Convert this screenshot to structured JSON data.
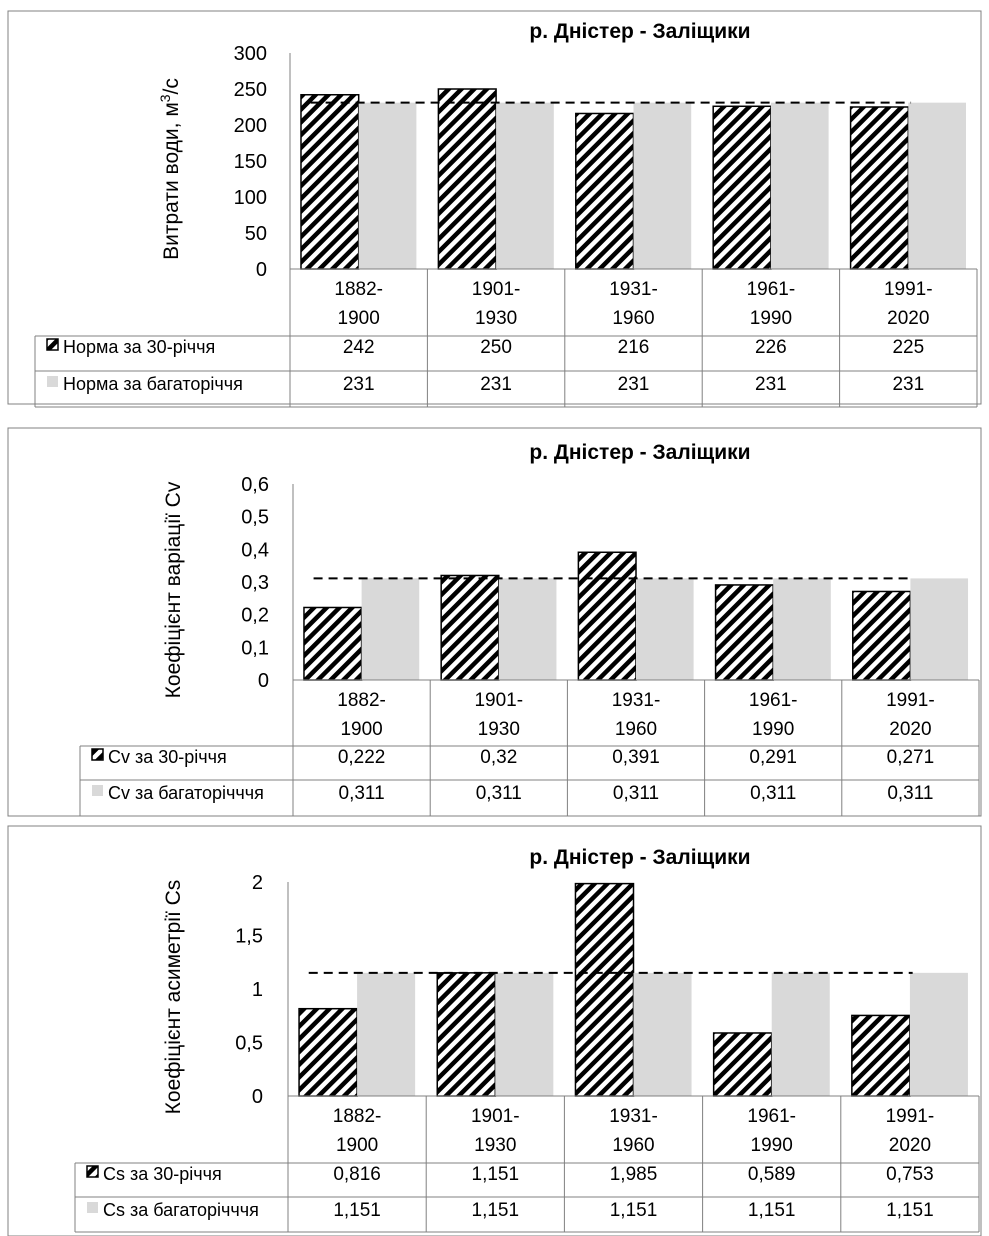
{
  "chart_data": [
    {
      "type": "bar",
      "title": "р. Дністер - Заліщики",
      "ylabel": "Витрати води, м³/с",
      "ylabel_base": "Витрати води, м",
      "ylabel_sup": "3",
      "ylabel_tail": "/с",
      "ylim": [
        0,
        300
      ],
      "yticks": [
        "0",
        "50",
        "100",
        "150",
        "200",
        "250",
        "300"
      ],
      "categories": [
        "1882-1900",
        "1901-1930",
        "1931-1960",
        "1961-1990",
        "1991-2020"
      ],
      "category_lines": [
        [
          "1882-",
          "1900"
        ],
        [
          "1901-",
          "1930"
        ],
        [
          "1931-",
          "1960"
        ],
        [
          "1961-",
          "1990"
        ],
        [
          "1991-",
          "2020"
        ]
      ],
      "series": [
        {
          "name": "Норма за 30-річчя",
          "values": [
            242,
            250,
            216,
            226,
            225
          ],
          "display": [
            "242",
            "250",
            "216",
            "226",
            "225"
          ],
          "style": "hatched"
        },
        {
          "name": "Норма за багаторіччя",
          "values": [
            231,
            231,
            231,
            231,
            231
          ],
          "display": [
            "231",
            "231",
            "231",
            "231",
            "231"
          ],
          "style": "solid",
          "color": "#d9d9d9"
        }
      ],
      "reference_line": 231,
      "legend": "data-table",
      "grid": false
    },
    {
      "type": "bar",
      "title": "р. Дністер - Заліщики",
      "ylabel": "Коефіцієнт варіації Cv",
      "ylim": [
        0,
        0.6
      ],
      "yticks": [
        "0",
        "0,1",
        "0,2",
        "0,3",
        "0,4",
        "0,5",
        "0,6"
      ],
      "categories": [
        "1882-1900",
        "1901-1930",
        "1931-1960",
        "1961-1990",
        "1991-2020"
      ],
      "category_lines": [
        [
          "1882-",
          "1900"
        ],
        [
          "1901-",
          "1930"
        ],
        [
          "1931-",
          "1960"
        ],
        [
          "1961-",
          "1990"
        ],
        [
          "1991-",
          "2020"
        ]
      ],
      "series": [
        {
          "name": "Cv за 30-річчя",
          "values": [
            0.222,
            0.32,
            0.391,
            0.291,
            0.271
          ],
          "display": [
            "0,222",
            "0,32",
            "0,391",
            "0,291",
            "0,271"
          ],
          "style": "hatched"
        },
        {
          "name": "Cv за багаторічччя",
          "values": [
            0.311,
            0.311,
            0.311,
            0.311,
            0.311
          ],
          "display": [
            "0,311",
            "0,311",
            "0,311",
            "0,311",
            "0,311"
          ],
          "style": "solid",
          "color": "#d9d9d9"
        }
      ],
      "reference_line": 0.311,
      "legend": "data-table",
      "grid": false
    },
    {
      "type": "bar",
      "title": "р. Дністер - Заліщики",
      "ylabel": "Коефіцієнт асиметрії Cs",
      "ylim": [
        0,
        2
      ],
      "yticks": [
        "0",
        "0,5",
        "1",
        "1,5",
        "2"
      ],
      "categories": [
        "1882-1900",
        "1901-1930",
        "1931-1960",
        "1961-1990",
        "1991-2020"
      ],
      "category_lines": [
        [
          "1882-",
          "1900"
        ],
        [
          "1901-",
          "1930"
        ],
        [
          "1931-",
          "1960"
        ],
        [
          "1961-",
          "1990"
        ],
        [
          "1991-",
          "2020"
        ]
      ],
      "series": [
        {
          "name": "Cs за 30-річчя",
          "values": [
            0.816,
            1.151,
            1.985,
            0.589,
            0.753
          ],
          "display": [
            "0,816",
            "1,151",
            "1,985",
            "0,589",
            "0,753"
          ],
          "style": "hatched"
        },
        {
          "name": "Cs за багаторічччя",
          "values": [
            1.151,
            1.151,
            1.151,
            1.151,
            1.151
          ],
          "display": [
            "1,151",
            "1,151",
            "1,151",
            "1,151",
            "1,151"
          ],
          "style": "solid",
          "color": "#d9d9d9"
        }
      ],
      "reference_line": 1.151,
      "legend": "data-table",
      "grid": false
    }
  ]
}
